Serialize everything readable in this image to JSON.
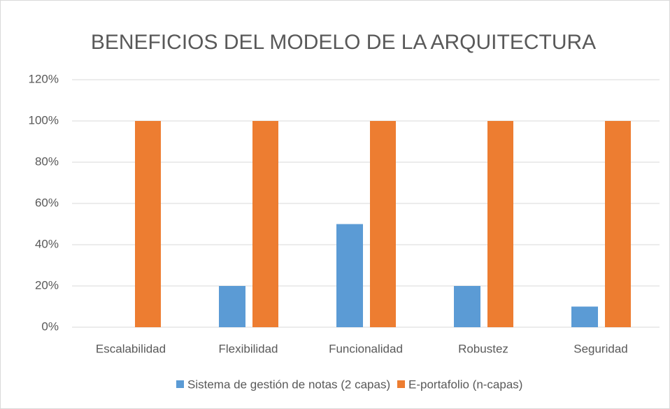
{
  "chart_data": {
    "type": "bar",
    "title": "BENEFICIOS DEL MODELO DE LA ARQUITECTURA",
    "categories": [
      "Escalabilidad",
      "Flexibilidad",
      "Funcionalidad",
      "Robustez",
      "Seguridad"
    ],
    "series": [
      {
        "name": "Sistema de gestión de notas  (2 capas)",
        "color": "#5b9bd5",
        "values": [
          0,
          20,
          50,
          20,
          10
        ]
      },
      {
        "name": "E-portafolio (n-capas)",
        "color": "#ed7d31",
        "values": [
          100,
          100,
          100,
          100,
          100
        ]
      }
    ],
    "ylim": [
      0,
      120
    ],
    "yticks": [
      {
        "value": 0,
        "label": "0%"
      },
      {
        "value": 20,
        "label": "20%"
      },
      {
        "value": 40,
        "label": "40%"
      },
      {
        "value": 60,
        "label": "60%"
      },
      {
        "value": 80,
        "label": "80%"
      },
      {
        "value": 100,
        "label": "100%"
      },
      {
        "value": 120,
        "label": "120%"
      }
    ],
    "grid": true,
    "legend": "bottom"
  }
}
